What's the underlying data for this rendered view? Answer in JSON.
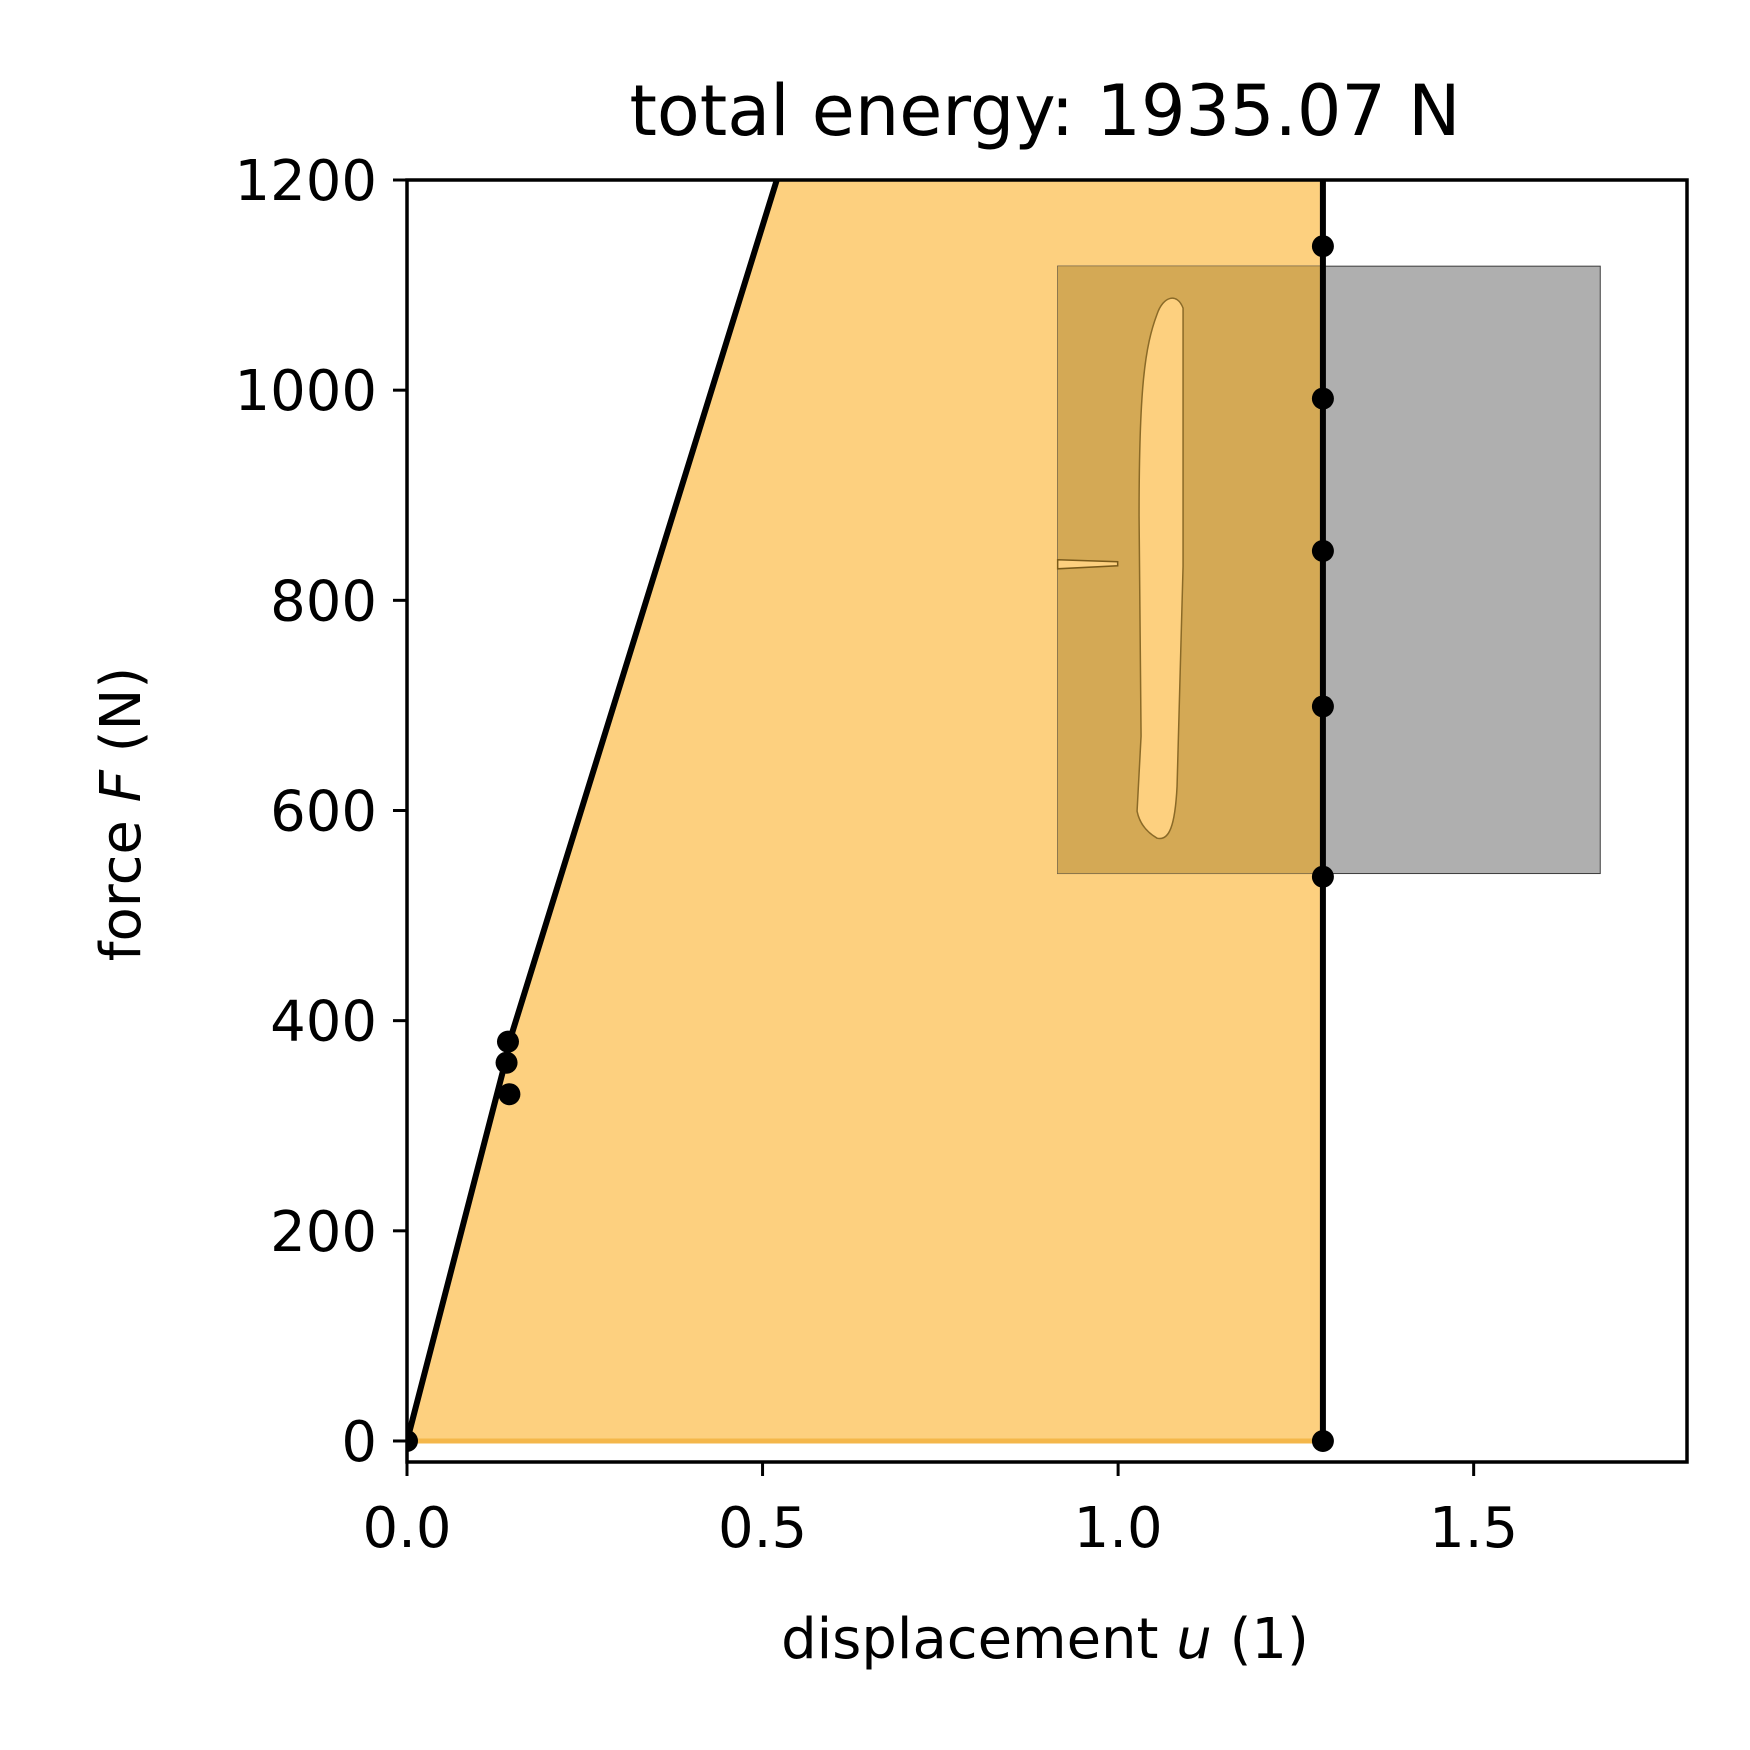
{
  "chart_data": {
    "type": "line",
    "title": "total energy: 1935.07 N",
    "xlabel_prefix": "displacement ",
    "xlabel_var": "u",
    "xlabel_suffix": " (1)",
    "ylabel_prefix": "force ",
    "ylabel_var": "F",
    "ylabel_suffix": " (N)",
    "xlim": [
      0.0,
      1.8
    ],
    "ylim": [
      -20,
      1200
    ],
    "xticks": [
      0.0,
      0.5,
      1.0,
      1.5
    ],
    "xtick_labels": [
      "0.0",
      "0.5",
      "1.0",
      "1.5"
    ],
    "yticks": [
      0,
      200,
      400,
      600,
      800,
      1000,
      1200
    ],
    "ytick_labels": [
      "0",
      "200",
      "400",
      "600",
      "800",
      "1000",
      "1200"
    ],
    "series": [
      {
        "line": [
          [
            0.0,
            0.0
          ],
          [
            0.138,
            360
          ],
          [
            0.144,
            380
          ],
          [
            0.52,
            1200
          ]
        ],
        "vertical_x": 1.288,
        "markers": [
          [
            0.0,
            0
          ],
          [
            0.142,
            380
          ],
          [
            0.14,
            360
          ],
          [
            0.144,
            330
          ],
          [
            1.288,
            0
          ],
          [
            1.288,
            537
          ],
          [
            1.288,
            699
          ],
          [
            1.288,
            847
          ],
          [
            1.288,
            992
          ],
          [
            1.288,
            1137
          ]
        ],
        "color": "#000000"
      }
    ],
    "fill": {
      "color": "#fdd07f",
      "polygon": [
        [
          0.0,
          0.0
        ],
        [
          0.138,
          360
        ],
        [
          0.144,
          380
        ],
        [
          0.52,
          1200
        ],
        [
          1.288,
          1200
        ],
        [
          1.288,
          0
        ]
      ]
    },
    "inset": {
      "x_range": [
        0.915,
        1.678
      ],
      "y_range": [
        540,
        1118
      ],
      "background": "#afafaf",
      "overlap_color": "#d4a955",
      "crack_color": "#fdd07f"
    },
    "grid": false
  }
}
